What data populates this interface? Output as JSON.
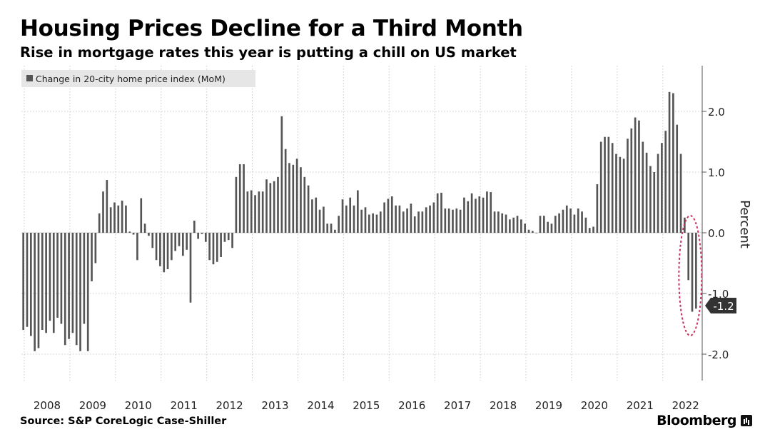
{
  "header": {
    "title": "Housing Prices Decline for a Third Month",
    "subtitle": "Rise in mortgage rates this year is putting a chill on US market"
  },
  "footer": {
    "source": "Source: S&P CoreLogic Case-Shiller",
    "brand": "Bloomberg"
  },
  "colors": {
    "bar": "#555555",
    "grid": "#cccccc",
    "highlight": "#c8325a",
    "badge_bg": "#333333",
    "badge_text": "#ffffff"
  },
  "chart_data": {
    "type": "bar",
    "title": "Housing Prices Decline for a Third Month",
    "subtitle": "Rise in mortgage rates this year is putting a chill on US market",
    "legend": {
      "label": "Change in 20-city home price index (MoM)",
      "placement": "top-left"
    },
    "ylabel": "Percent",
    "ylim": [
      -2.4,
      2.8
    ],
    "yticks": [
      2.0,
      1.0,
      0.0,
      -1.0,
      -2.0
    ],
    "ytick_labels": [
      "2.0",
      "1.0",
      "0.0",
      "-1.0",
      "-2.0"
    ],
    "grid": true,
    "x_start": "2008-01",
    "frequency": "monthly",
    "xtick_labels": [
      "2008",
      "2009",
      "2010",
      "2011",
      "2012",
      "2013",
      "2014",
      "2015",
      "2016",
      "2017",
      "2018",
      "2019",
      "2020",
      "2021",
      "2022"
    ],
    "last_value_label": "-1.2",
    "annotation": "dashed ellipse highlighting latest three monthly declines",
    "values": [
      -1.6,
      -1.55,
      -1.7,
      -1.95,
      -1.9,
      -1.6,
      -1.65,
      -1.45,
      -1.65,
      -1.4,
      -1.5,
      -1.85,
      -1.75,
      -1.65,
      -1.85,
      -1.95,
      -1.5,
      -1.95,
      -0.8,
      -0.5,
      0.32,
      0.68,
      0.87,
      0.42,
      0.5,
      0.45,
      0.53,
      0.45,
      0.02,
      -0.03,
      -0.45,
      0.57,
      0.15,
      -0.05,
      -0.25,
      -0.45,
      -0.55,
      -0.65,
      -0.6,
      -0.45,
      -0.3,
      -0.22,
      -0.38,
      -0.28,
      -1.15,
      0.2,
      -0.1,
      -0.02,
      -0.15,
      -0.45,
      -0.52,
      -0.48,
      -0.4,
      -0.15,
      -0.12,
      -0.25,
      0.92,
      1.13,
      1.13,
      0.68,
      0.7,
      0.62,
      0.68,
      0.68,
      0.88,
      0.82,
      0.85,
      0.92,
      1.92,
      1.38,
      1.15,
      1.12,
      1.22,
      1.08,
      0.92,
      0.78,
      0.55,
      0.58,
      0.38,
      0.43,
      0.15,
      0.15,
      0.05,
      0.28,
      0.55,
      0.45,
      0.58,
      0.45,
      0.7,
      0.38,
      0.42,
      0.3,
      0.32,
      0.3,
      0.35,
      0.5,
      0.56,
      0.6,
      0.45,
      0.45,
      0.35,
      0.4,
      0.48,
      0.27,
      0.35,
      0.35,
      0.42,
      0.45,
      0.5,
      0.65,
      0.66,
      0.4,
      0.4,
      0.38,
      0.4,
      0.38,
      0.58,
      0.52,
      0.65,
      0.56,
      0.6,
      0.58,
      0.68,
      0.67,
      0.35,
      0.35,
      0.32,
      0.3,
      0.22,
      0.25,
      0.28,
      0.22,
      0.15,
      0.05,
      0.03,
      0.0,
      0.28,
      0.28,
      0.18,
      0.15,
      0.28,
      0.32,
      0.38,
      0.45,
      0.4,
      0.3,
      0.4,
      0.35,
      0.25,
      0.08,
      0.1,
      0.8,
      1.5,
      1.58,
      1.58,
      1.48,
      1.3,
      1.25,
      1.22,
      1.55,
      1.72,
      1.9,
      1.85,
      1.5,
      1.32,
      1.1,
      1.0,
      1.3,
      1.48,
      1.68,
      2.32,
      2.3,
      1.78,
      1.3,
      0.25,
      -0.78,
      -1.3,
      -1.25
    ]
  }
}
